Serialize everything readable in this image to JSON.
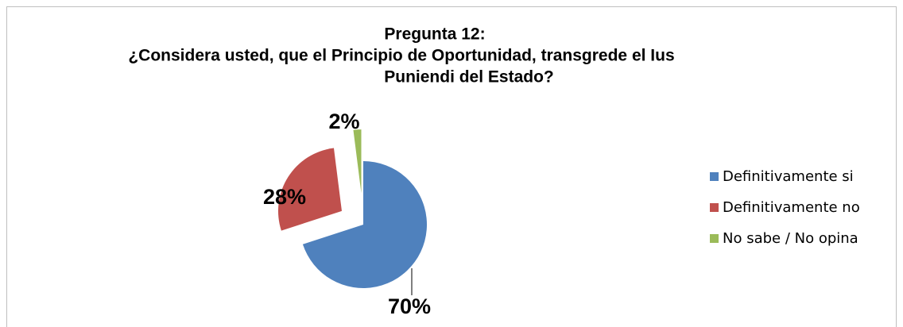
{
  "chart_data": {
    "type": "pie",
    "title": [
      "Pregunta 12:",
      "¿Considera usted, que el Principio de Oportunidad, transgrede el Ius",
      "Puniendi del Estado?"
    ],
    "categories": [
      "Definitivamente si",
      "Definitivamente no",
      "No sabe / No opina"
    ],
    "values": [
      70,
      28,
      2
    ],
    "value_labels": [
      "70%",
      "28%",
      "2%"
    ],
    "colors": [
      "#4f81bd",
      "#c0504d",
      "#9bbb59"
    ],
    "legend": "right"
  }
}
